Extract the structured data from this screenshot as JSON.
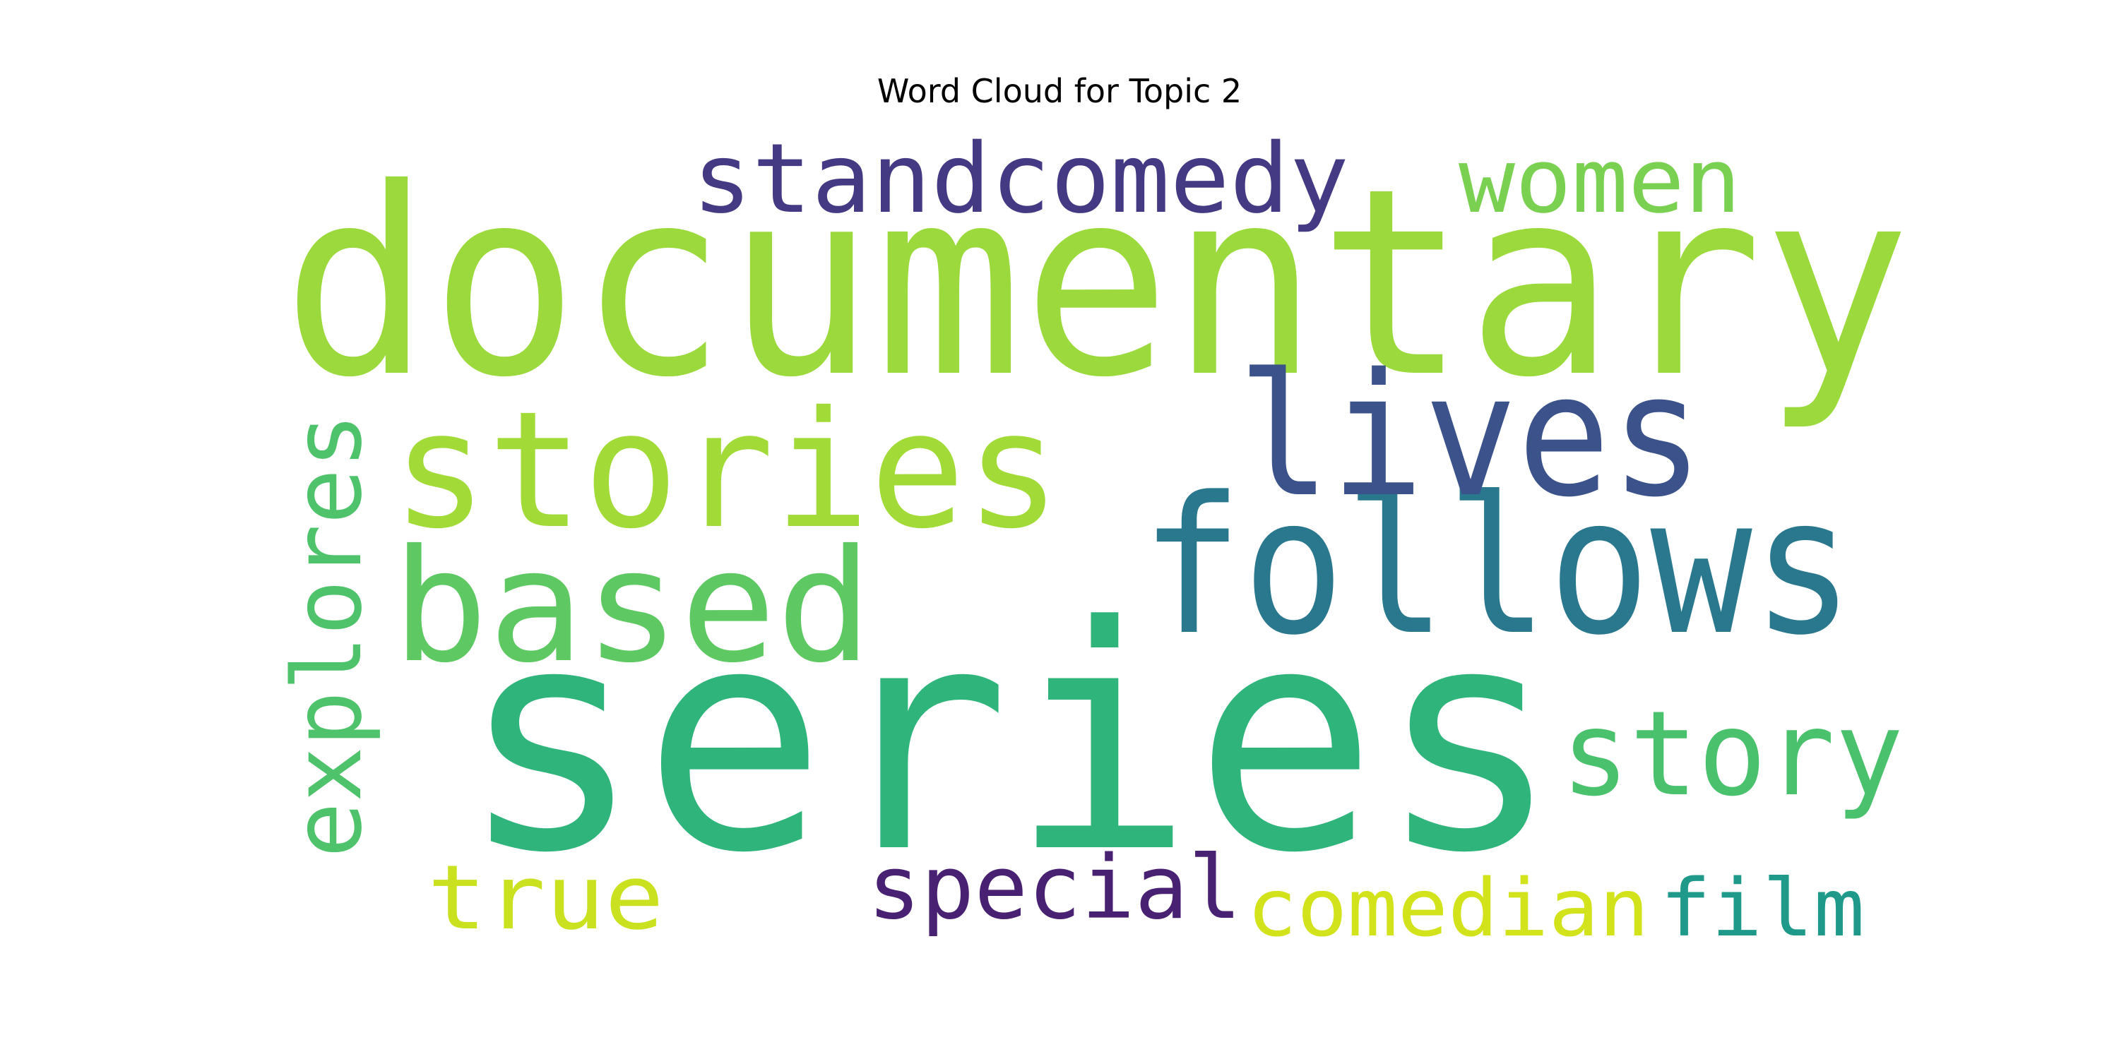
{
  "title": "Word Cloud for Topic 2",
  "words": [
    {
      "text": "documentary",
      "color": "#9bd93c"
    },
    {
      "text": "series",
      "color": "#2fb47c"
    },
    {
      "text": "stories",
      "color": "#a2da37"
    },
    {
      "text": "follows",
      "color": "#2a788e"
    },
    {
      "text": "lives",
      "color": "#3b528b"
    },
    {
      "text": "based",
      "color": "#5ec962"
    },
    {
      "text": "standcomedy",
      "color": "#443983"
    },
    {
      "text": "story",
      "color": "#4ac16d"
    },
    {
      "text": "women",
      "color": "#7ad151"
    },
    {
      "text": "explores",
      "color": "#4ec36b"
    },
    {
      "text": "special",
      "color": "#482173"
    },
    {
      "text": "comedian",
      "color": "#d2e21b"
    },
    {
      "text": "film",
      "color": "#1f9a8a"
    },
    {
      "text": "true",
      "color": "#cae11f"
    }
  ]
}
